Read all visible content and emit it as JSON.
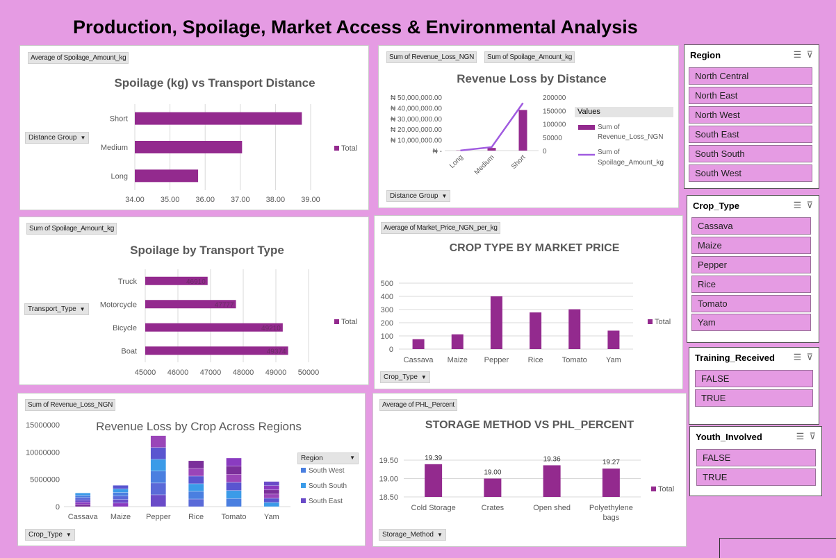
{
  "page_title": "Production, Spoilage, Market Access & Environmental Analysis",
  "colors": {
    "bar": "#932a8e",
    "line": "#a05be0",
    "background": "#e59be3"
  },
  "charts": [
    {
      "id": "c1",
      "field_button": "Average of Spoilage_Amount_kg",
      "title": "Spoilage (kg) vs Transport Distance",
      "axis_button": "Distance Group",
      "legend": [
        "Total"
      ]
    },
    {
      "id": "c2",
      "field_buttons": [
        "Sum of Revenue_Loss_NGN",
        "Sum of Spoilage_Amount_kg"
      ],
      "title": "Revenue Loss by Distance",
      "axis_button": "Distance Group",
      "legend_title": "Values",
      "legend": [
        "Sum of Revenue_Loss_NGN",
        "Sum of Spoilage_Amount_kg"
      ]
    },
    {
      "id": "c3",
      "field_button": "Sum of Spoilage_Amount_kg",
      "title": "Spoilage  by Transport Type",
      "axis_button": "Transport_Type",
      "legend": [
        "Total"
      ]
    },
    {
      "id": "c4",
      "field_button": "Average of Market_Price_NGN_per_kg",
      "title": "CROP TYPE BY MARKET PRICE",
      "axis_button": "Crop_Type",
      "legend": [
        "Total"
      ]
    },
    {
      "id": "c5",
      "field_button": "Sum of Revenue_Loss_NGN",
      "title": "Revenue Loss by Crop Across Regions",
      "axis_button": "Crop_Type",
      "legend_title": "Region",
      "legend": [
        "South West",
        "South South",
        "South East"
      ]
    },
    {
      "id": "c6",
      "field_button": "Average of PHL_Percent",
      "title": "STORAGE METHOD VS PHL_PERCENT",
      "axis_button": "Storage_Method",
      "legend": [
        "Total"
      ]
    }
  ],
  "chart_data": [
    {
      "type": "bar",
      "orientation": "horizontal",
      "categories": [
        "Short",
        "Medium",
        "Long"
      ],
      "values": [
        38.75,
        37.05,
        35.8
      ],
      "xlim": [
        34,
        39
      ],
      "xticks": [
        "34.00",
        "35.00",
        "36.00",
        "37.00",
        "38.00",
        "39.00"
      ],
      "series_name": "Total"
    },
    {
      "type": "bar+line",
      "categories": [
        "Long",
        "Medium",
        "Short"
      ],
      "series": [
        {
          "name": "Sum of Revenue_Loss_NGN",
          "values": [
            200000,
            2500000,
            38000000
          ],
          "axis": "left"
        },
        {
          "name": "Sum of Spoilage_Amount_kg",
          "values": [
            500,
            13000,
            178000
          ],
          "axis": "right"
        }
      ],
      "ylim_left": [
        0,
        50000000
      ],
      "yticks_left": [
        "₦ -",
        "₦ 10,000,000.00",
        "₦ 20,000,000.00",
        "₦ 30,000,000.00",
        "₦ 40,000,000.00",
        "₦ 50,000,000.00"
      ],
      "ylim_right": [
        0,
        200000
      ],
      "yticks_right": [
        "0",
        "50000",
        "100000",
        "150000",
        "200000"
      ]
    },
    {
      "type": "bar",
      "orientation": "horizontal",
      "categories": [
        "Truck",
        "Motorcycle",
        "Bicycle",
        "Boat"
      ],
      "values": [
        46910,
        47777,
        49210,
        49374
      ],
      "data_labels": [
        "46910",
        "47777",
        "49210",
        "49374"
      ],
      "xlim": [
        45000,
        50000
      ],
      "xticks": [
        "45000",
        "46000",
        "47000",
        "48000",
        "49000",
        "50000"
      ],
      "series_name": "Total"
    },
    {
      "type": "bar",
      "categories": [
        "Cassava",
        "Maize",
        "Pepper",
        "Rice",
        "Tomato",
        "Yam"
      ],
      "values": [
        75,
        112,
        400,
        278,
        302,
        140
      ],
      "ylim": [
        0,
        500
      ],
      "yticks": [
        "0",
        "100",
        "200",
        "300",
        "400",
        "500"
      ],
      "series_name": "Total"
    },
    {
      "type": "stacked-bar",
      "categories": [
        "Cassava",
        "Maize",
        "Pepper",
        "Rice",
        "Tomato",
        "Yam"
      ],
      "totals": [
        2500000,
        3900000,
        13000000,
        8400000,
        8900000,
        4600000
      ],
      "ylim": [
        0,
        15000000
      ],
      "yticks": [
        "0",
        "5000000",
        "10000000",
        "15000000"
      ],
      "series": [
        {
          "name": "South West",
          "color": "#4a7fe0"
        },
        {
          "name": "South South",
          "color": "#3b9be8"
        },
        {
          "name": "South East",
          "color": "#6a4bc8"
        }
      ]
    },
    {
      "type": "bar",
      "categories": [
        "Cold Storage",
        "Crates",
        "Open shed",
        "Polyethylene\nbags"
      ],
      "category_lines": [
        [
          "Cold Storage"
        ],
        [
          "Crates"
        ],
        [
          "Open shed"
        ],
        [
          "Polyethylene",
          "bags"
        ]
      ],
      "values": [
        19.39,
        19.0,
        19.36,
        19.27
      ],
      "data_labels": [
        "19.39",
        "19.00",
        "19.36",
        "19.27"
      ],
      "ylim": [
        18.5,
        19.5
      ],
      "yticks": [
        "18.50",
        "19.00",
        "19.50"
      ],
      "series_name": "Total"
    }
  ],
  "slicers": [
    {
      "id": "region",
      "title": "Region",
      "items": [
        "North Central",
        "North East",
        "North West",
        "South East",
        "South South",
        "South West"
      ]
    },
    {
      "id": "crop",
      "title": "Crop_Type",
      "items": [
        "Cassava",
        "Maize",
        "Pepper",
        "Rice",
        "Tomato",
        "Yam"
      ]
    },
    {
      "id": "training",
      "title": "Training_Received",
      "items": [
        "FALSE",
        "TRUE"
      ]
    },
    {
      "id": "youth",
      "title": "Youth_Involved",
      "items": [
        "FALSE",
        "TRUE"
      ]
    }
  ],
  "icons": {
    "multi_select": "multi-select-icon",
    "clear_filter": "clear-filter-icon",
    "dropdown": "dropdown-arrow-icon"
  }
}
